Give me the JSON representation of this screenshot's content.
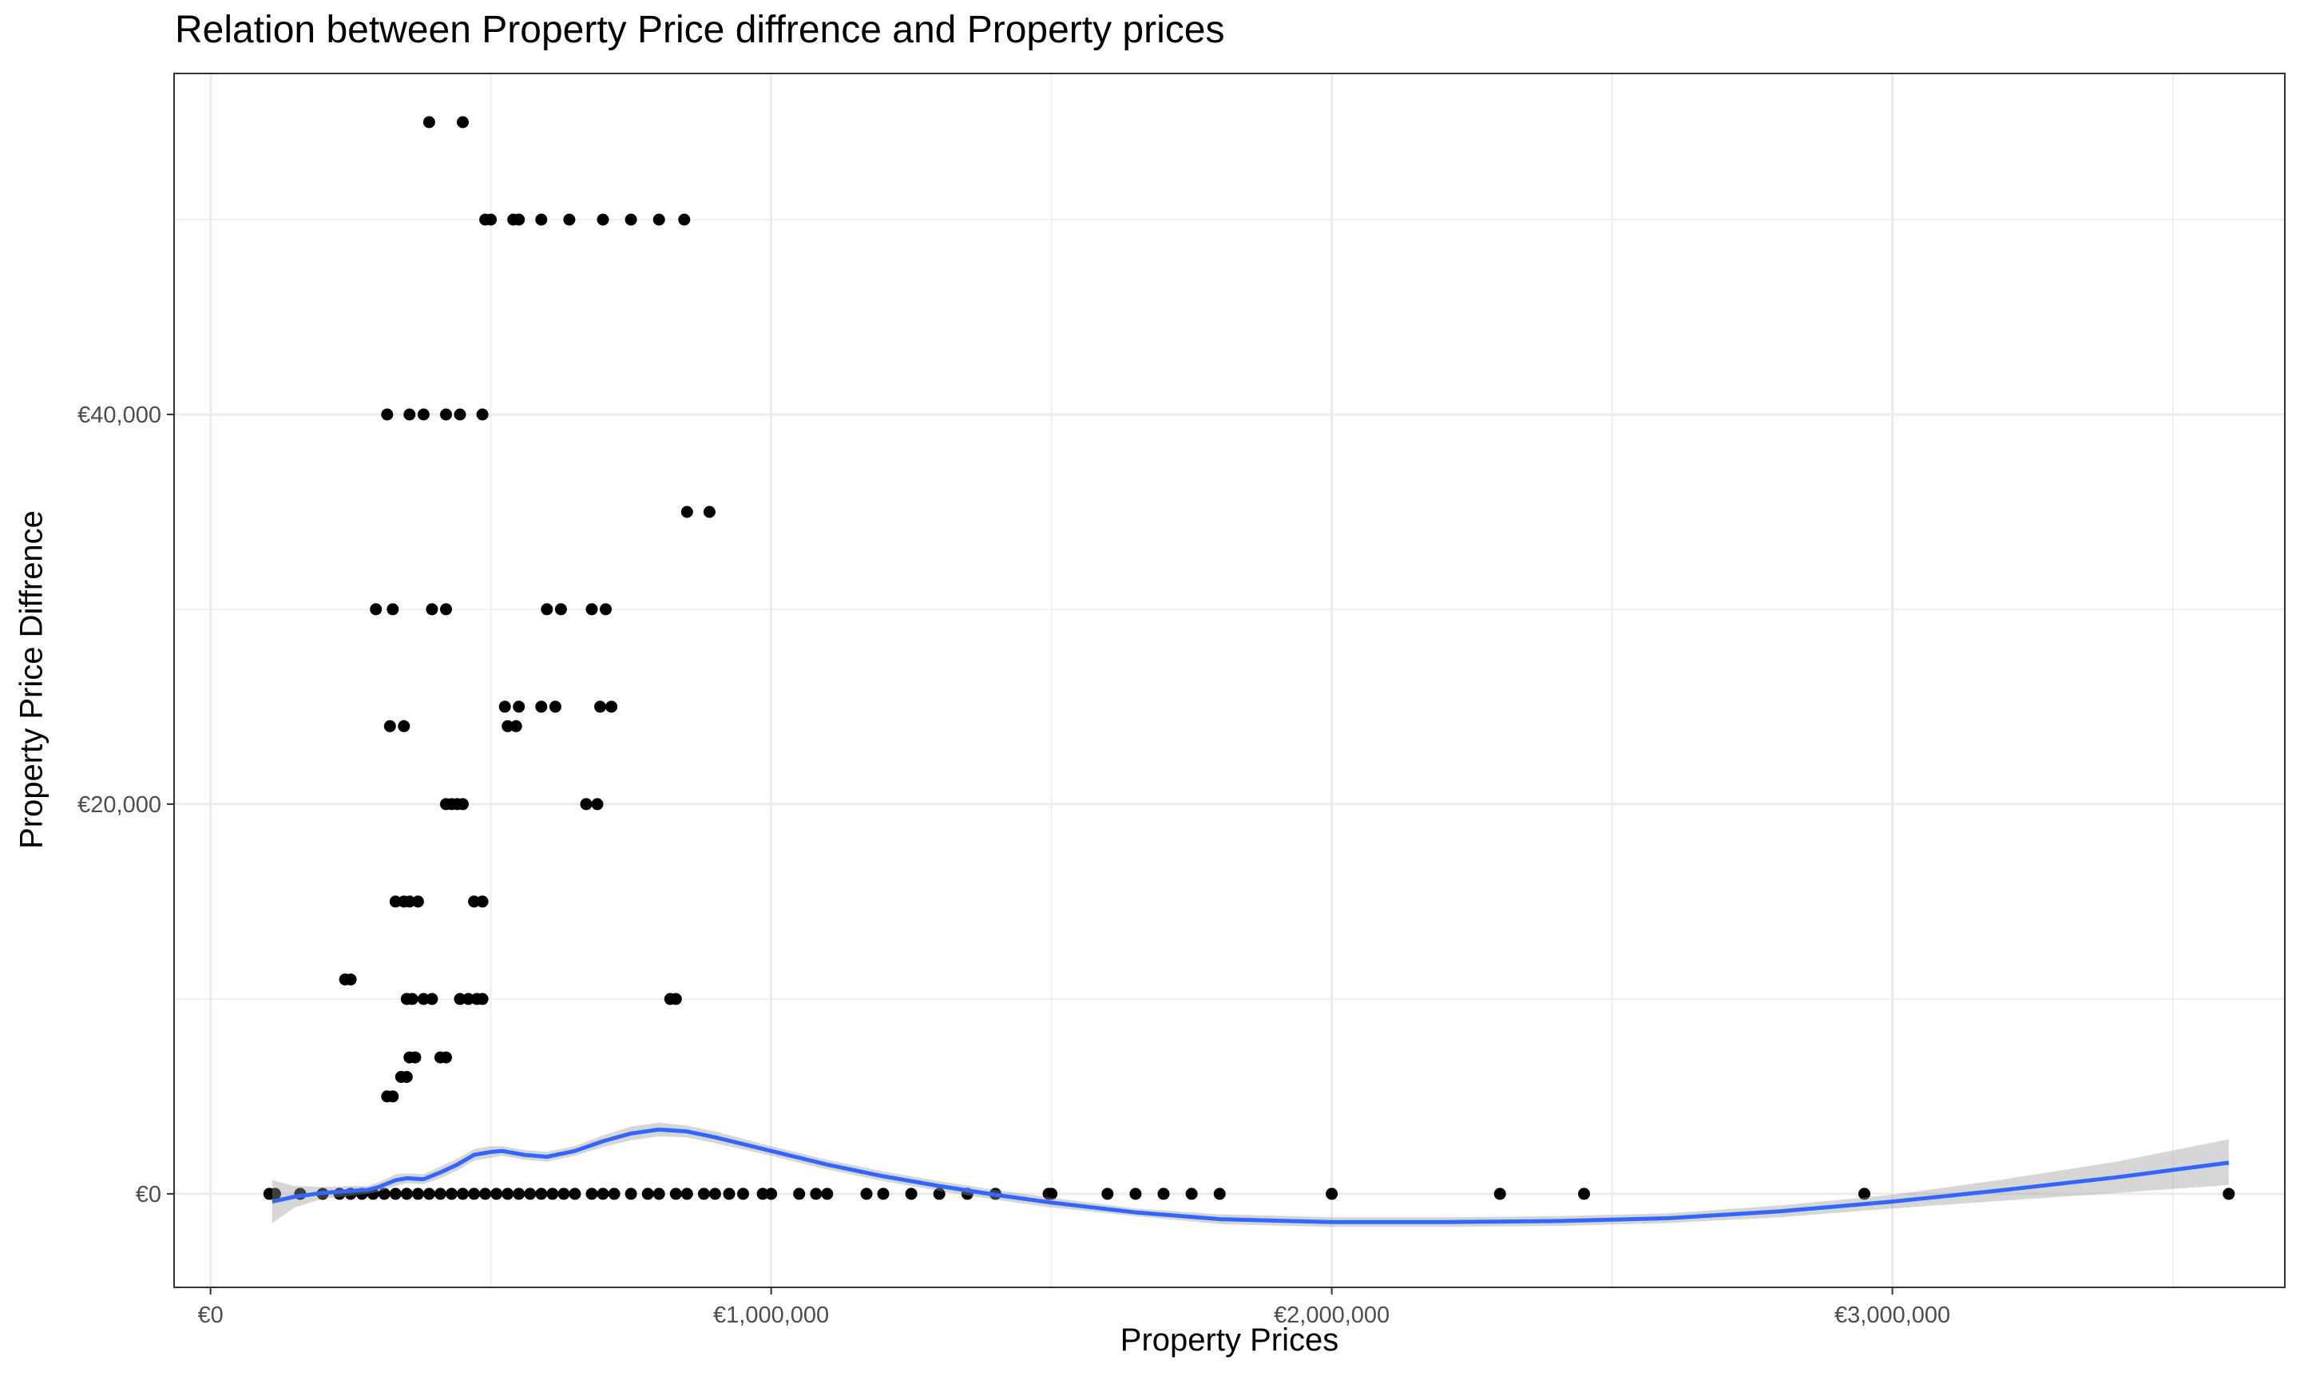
{
  "chart_data": {
    "type": "scatter",
    "title": "Relation between Property Price diffrence and Property prices",
    "xlabel": "Property Prices",
    "ylabel": "Property Price Diffrence",
    "xlim": [
      -65000,
      3700000
    ],
    "ylim": [
      -4800,
      57500
    ],
    "x_ticks": [
      0,
      1000000,
      2000000,
      3000000
    ],
    "x_tick_labels": [
      "€0",
      "€1,000,000",
      "€2,000,000",
      "€3,000,000"
    ],
    "y_ticks": [
      0,
      20000,
      40000
    ],
    "y_tick_labels": [
      "€0",
      "€20,000",
      "€40,000"
    ],
    "grid": true,
    "colors": {
      "points": "#000000",
      "smooth": "#3366FF",
      "band": "#999999",
      "grid": "#ebebeb",
      "panel_border": "#333333"
    },
    "points": [
      [
        390000,
        55000
      ],
      [
        450000,
        55000
      ],
      [
        490000,
        50000
      ],
      [
        500000,
        50000
      ],
      [
        540000,
        50000
      ],
      [
        550000,
        50000
      ],
      [
        590000,
        50000
      ],
      [
        640000,
        50000
      ],
      [
        700000,
        50000
      ],
      [
        750000,
        50000
      ],
      [
        800000,
        50000
      ],
      [
        845000,
        50000
      ],
      [
        315000,
        40000
      ],
      [
        355000,
        40000
      ],
      [
        380000,
        40000
      ],
      [
        420000,
        40000
      ],
      [
        445000,
        40000
      ],
      [
        485000,
        40000
      ],
      [
        850000,
        35000
      ],
      [
        890000,
        35000
      ],
      [
        295000,
        30000
      ],
      [
        325000,
        30000
      ],
      [
        395000,
        30000
      ],
      [
        420000,
        30000
      ],
      [
        600000,
        30000
      ],
      [
        625000,
        30000
      ],
      [
        680000,
        30000
      ],
      [
        705000,
        30000
      ],
      [
        320000,
        24000
      ],
      [
        345000,
        24000
      ],
      [
        530000,
        24000
      ],
      [
        545000,
        24000
      ],
      [
        525000,
        25000
      ],
      [
        550000,
        25000
      ],
      [
        590000,
        25000
      ],
      [
        615000,
        25000
      ],
      [
        695000,
        25000
      ],
      [
        715000,
        25000
      ],
      [
        420000,
        20000
      ],
      [
        430000,
        20000
      ],
      [
        440000,
        20000
      ],
      [
        450000,
        20000
      ],
      [
        670000,
        20000
      ],
      [
        690000,
        20000
      ],
      [
        330000,
        15000
      ],
      [
        345000,
        15000
      ],
      [
        355000,
        15000
      ],
      [
        370000,
        15000
      ],
      [
        470000,
        15000
      ],
      [
        485000,
        15000
      ],
      [
        240000,
        11000
      ],
      [
        250000,
        11000
      ],
      [
        350000,
        10000
      ],
      [
        360000,
        10000
      ],
      [
        380000,
        10000
      ],
      [
        395000,
        10000
      ],
      [
        445000,
        10000
      ],
      [
        460000,
        10000
      ],
      [
        475000,
        10000
      ],
      [
        485000,
        10000
      ],
      [
        820000,
        10000
      ],
      [
        830000,
        10000
      ],
      [
        355000,
        7000
      ],
      [
        365000,
        7000
      ],
      [
        410000,
        7000
      ],
      [
        420000,
        7000
      ],
      [
        340000,
        6000
      ],
      [
        350000,
        6000
      ],
      [
        315000,
        5000
      ],
      [
        325000,
        5000
      ],
      [
        105000,
        0
      ],
      [
        115000,
        0
      ],
      [
        160000,
        0
      ],
      [
        200000,
        0
      ],
      [
        230000,
        0
      ],
      [
        250000,
        0
      ],
      [
        270000,
        0
      ],
      [
        290000,
        0
      ],
      [
        310000,
        0
      ],
      [
        330000,
        0
      ],
      [
        350000,
        0
      ],
      [
        370000,
        0
      ],
      [
        390000,
        0
      ],
      [
        410000,
        0
      ],
      [
        430000,
        0
      ],
      [
        450000,
        0
      ],
      [
        470000,
        0
      ],
      [
        490000,
        0
      ],
      [
        510000,
        0
      ],
      [
        530000,
        0
      ],
      [
        550000,
        0
      ],
      [
        570000,
        0
      ],
      [
        590000,
        0
      ],
      [
        610000,
        0
      ],
      [
        630000,
        0
      ],
      [
        650000,
        0
      ],
      [
        680000,
        0
      ],
      [
        700000,
        0
      ],
      [
        720000,
        0
      ],
      [
        750000,
        0
      ],
      [
        780000,
        0
      ],
      [
        800000,
        0
      ],
      [
        830000,
        0
      ],
      [
        850000,
        0
      ],
      [
        880000,
        0
      ],
      [
        900000,
        0
      ],
      [
        925000,
        0
      ],
      [
        950000,
        0
      ],
      [
        985000,
        0
      ],
      [
        1000000,
        0
      ],
      [
        1050000,
        0
      ],
      [
        1080000,
        0
      ],
      [
        1100000,
        0
      ],
      [
        1170000,
        0
      ],
      [
        1200000,
        0
      ],
      [
        1250000,
        0
      ],
      [
        1300000,
        0
      ],
      [
        1350000,
        0
      ],
      [
        1400000,
        0
      ],
      [
        1495000,
        0
      ],
      [
        1500000,
        0
      ],
      [
        1600000,
        0
      ],
      [
        1650000,
        0
      ],
      [
        1700000,
        0
      ],
      [
        1750000,
        0
      ],
      [
        1800000,
        0
      ],
      [
        2000000,
        0
      ],
      [
        2300000,
        0
      ],
      [
        2450000,
        0
      ],
      [
        2950000,
        0
      ],
      [
        3600000,
        0
      ]
    ],
    "smooth": {
      "x": [
        110000,
        150000,
        200000,
        250000,
        280000,
        300000,
        330000,
        350000,
        380000,
        410000,
        440000,
        470000,
        500000,
        520000,
        560000,
        600000,
        650000,
        700000,
        750000,
        800000,
        850000,
        900000,
        1000000,
        1100000,
        1200000,
        1300000,
        1400000,
        1500000,
        1650000,
        1800000,
        2000000,
        2200000,
        2400000,
        2600000,
        2800000,
        3000000,
        3200000,
        3400000,
        3600000
      ],
      "y": [
        -400,
        -150,
        50,
        150,
        200,
        350,
        700,
        800,
        750,
        1100,
        1500,
        2000,
        2150,
        2200,
        2000,
        1900,
        2200,
        2700,
        3100,
        3300,
        3200,
        2900,
        2200,
        1500,
        900,
        400,
        -50,
        -450,
        -950,
        -1300,
        -1450,
        -1450,
        -1400,
        -1250,
        -900,
        -400,
        200,
        850,
        1600
      ],
      "lower": [
        -1500,
        -700,
        -250,
        -100,
        0,
        100,
        400,
        550,
        500,
        800,
        1200,
        1700,
        1850,
        1950,
        1750,
        1650,
        1950,
        2400,
        2750,
        2950,
        2900,
        2600,
        1950,
        1250,
        650,
        150,
        -300,
        -700,
        -1150,
        -1550,
        -1700,
        -1700,
        -1650,
        -1500,
        -1200,
        -750,
        -350,
        50,
        450
      ],
      "upper": [
        700,
        400,
        350,
        400,
        400,
        600,
        1000,
        1050,
        1000,
        1400,
        1800,
        2300,
        2450,
        2450,
        2250,
        2150,
        2450,
        3000,
        3450,
        3650,
        3500,
        3200,
        2450,
        1750,
        1150,
        650,
        200,
        -200,
        -750,
        -1050,
        -1200,
        -1200,
        -1150,
        -1000,
        -600,
        -50,
        750,
        1650,
        2800
      ]
    }
  }
}
